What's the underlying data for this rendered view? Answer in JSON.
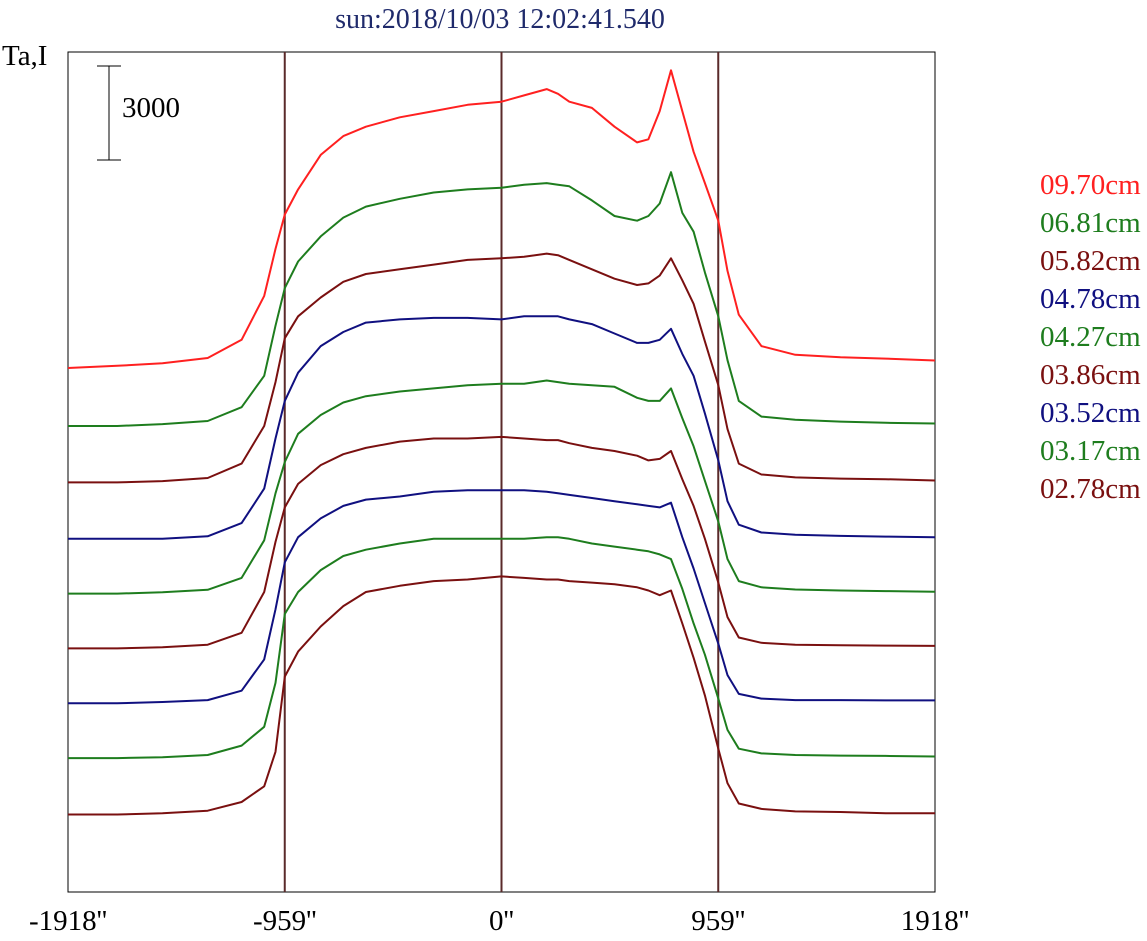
{
  "chart_data": {
    "type": "line",
    "title": "sun:2018/10/03 12:02:41.540",
    "ylabel": "Ta,I",
    "scale_bar_label": "3000",
    "scale_bar_value": 3000,
    "xlim": [
      -1918,
      1918
    ],
    "x_ticks": [
      {
        "value": -1918,
        "label": "-1918''"
      },
      {
        "value": -959,
        "label": "-959''"
      },
      {
        "value": 0,
        "label": "0''"
      },
      {
        "value": 959,
        "label": "959''"
      },
      {
        "value": 1918,
        "label": "1918''"
      }
    ],
    "vertical_markers": [
      -959,
      0,
      959
    ],
    "marker_color": "#5a2a2a",
    "legend": [
      {
        "label": "09.70cm",
        "color": "#ff2020"
      },
      {
        "label": "06.81cm",
        "color": "#1e7d1e"
      },
      {
        "label": "05.82cm",
        "color": "#7a1010"
      },
      {
        "label": "04.78cm",
        "color": "#101080"
      },
      {
        "label": "04.27cm",
        "color": "#1e7d1e"
      },
      {
        "label": "03.86cm",
        "color": "#7a1010"
      },
      {
        "label": "03.52cm",
        "color": "#101080"
      },
      {
        "label": "03.17cm",
        "color": "#1e7d1e"
      },
      {
        "label": "02.78cm",
        "color": "#7a1010"
      }
    ],
    "x": [
      -1918,
      -1700,
      -1500,
      -1300,
      -1150,
      -1050,
      -1000,
      -959,
      -900,
      -800,
      -700,
      -600,
      -450,
      -300,
      -150,
      0,
      100,
      200,
      250,
      300,
      400,
      500,
      600,
      650,
      700,
      750,
      800,
      850,
      900,
      959,
      1000,
      1050,
      1150,
      1300,
      1500,
      1700,
      1918
    ],
    "series": [
      {
        "name": "09.70cm",
        "color": "#ff2020",
        "offset": 0,
        "values": [
          0,
          70,
          150,
          320,
          900,
          2300,
          3800,
          4900,
          5700,
          6800,
          7400,
          7700,
          8000,
          8200,
          8400,
          8500,
          8700,
          8900,
          8750,
          8500,
          8300,
          7700,
          7200,
          7300,
          8200,
          9500,
          8200,
          6900,
          5900,
          4700,
          3100,
          1700,
          700,
          420,
          340,
          300,
          240
        ]
      },
      {
        "name": "06.81cm",
        "color": "#1e7d1e",
        "offset": -1850,
        "values": [
          0,
          0,
          60,
          160,
          600,
          1600,
          3200,
          4400,
          5250,
          6050,
          6650,
          7000,
          7250,
          7450,
          7550,
          7600,
          7700,
          7750,
          7700,
          7650,
          7200,
          6700,
          6550,
          6700,
          7100,
          8100,
          6800,
          6200,
          4900,
          3500,
          2100,
          800,
          300,
          200,
          140,
          100,
          80
        ]
      },
      {
        "name": "05.82cm",
        "color": "#7a1010",
        "offset": -3650,
        "values": [
          0,
          0,
          40,
          140,
          600,
          1800,
          3200,
          4600,
          5300,
          5900,
          6400,
          6650,
          6800,
          6950,
          7100,
          7150,
          7200,
          7300,
          7250,
          7100,
          6800,
          6500,
          6300,
          6350,
          6600,
          7150,
          6450,
          5700,
          4500,
          3100,
          1700,
          600,
          250,
          160,
          120,
          100,
          60
        ]
      },
      {
        "name": "04.78cm",
        "color": "#101080",
        "offset": -5450,
        "values": [
          0,
          0,
          0,
          80,
          500,
          1600,
          3200,
          4400,
          5300,
          6150,
          6600,
          6900,
          7000,
          7050,
          7050,
          7000,
          7100,
          7100,
          7100,
          7000,
          6850,
          6550,
          6250,
          6250,
          6350,
          6700,
          5900,
          5200,
          4000,
          2500,
          1200,
          450,
          200,
          130,
          90,
          70,
          50
        ]
      },
      {
        "name": "04.27cm",
        "color": "#1e7d1e",
        "offset": -7200,
        "values": [
          0,
          0,
          40,
          120,
          500,
          1700,
          3200,
          4200,
          5100,
          5700,
          6100,
          6300,
          6450,
          6550,
          6650,
          6700,
          6700,
          6800,
          6750,
          6700,
          6650,
          6600,
          6250,
          6150,
          6150,
          6550,
          5600,
          4700,
          3600,
          2300,
          1100,
          400,
          200,
          130,
          100,
          80,
          60
        ]
      },
      {
        "name": "03.86cm",
        "color": "#7a1010",
        "offset": -8950,
        "values": [
          0,
          0,
          40,
          120,
          500,
          1800,
          3400,
          4500,
          5250,
          5850,
          6200,
          6400,
          6600,
          6700,
          6700,
          6750,
          6700,
          6650,
          6650,
          6550,
          6400,
          6300,
          6150,
          6000,
          6050,
          6300,
          5400,
          4550,
          3500,
          2100,
          1000,
          350,
          180,
          120,
          100,
          90,
          80
        ]
      },
      {
        "name": "03.52cm",
        "color": "#101080",
        "offset": -10700,
        "values": [
          0,
          0,
          40,
          100,
          400,
          1400,
          3000,
          4500,
          5300,
          5900,
          6300,
          6500,
          6600,
          6750,
          6800,
          6800,
          6800,
          6750,
          6700,
          6650,
          6550,
          6450,
          6350,
          6300,
          6250,
          6400,
          5300,
          4300,
          3200,
          1900,
          900,
          300,
          150,
          100,
          100,
          90,
          90
        ]
      },
      {
        "name": "03.17cm",
        "color": "#1e7d1e",
        "offset": -12450,
        "values": [
          0,
          0,
          30,
          100,
          400,
          1000,
          2400,
          4600,
          5300,
          6000,
          6450,
          6650,
          6850,
          7000,
          7000,
          7000,
          7000,
          7050,
          7050,
          7000,
          6850,
          6750,
          6650,
          6600,
          6500,
          6350,
          5400,
          4300,
          3300,
          1900,
          900,
          300,
          150,
          100,
          80,
          70,
          50
        ]
      },
      {
        "name": "02.78cm",
        "color": "#7a1010",
        "offset": -14250,
        "values": [
          0,
          0,
          40,
          120,
          400,
          900,
          2000,
          4400,
          5200,
          6000,
          6650,
          7100,
          7300,
          7450,
          7500,
          7600,
          7550,
          7500,
          7500,
          7450,
          7400,
          7350,
          7250,
          7150,
          7000,
          7150,
          6100,
          5000,
          3800,
          2100,
          1000,
          350,
          180,
          100,
          80,
          40,
          40
        ]
      }
    ]
  }
}
